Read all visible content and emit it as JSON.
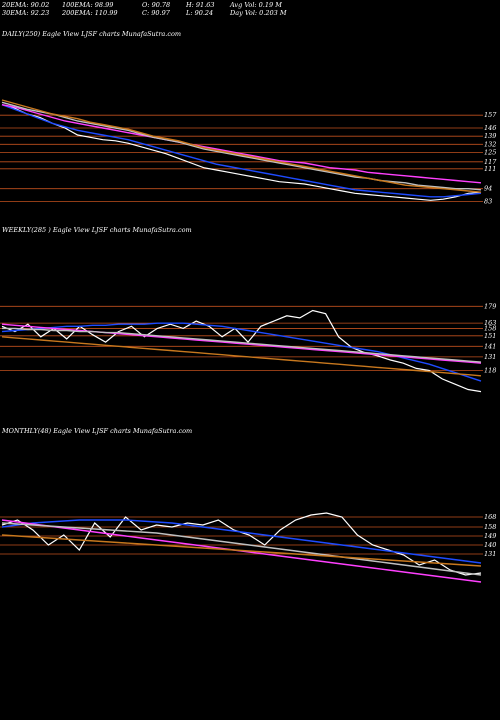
{
  "header": {
    "row1": [
      "20EMA: 90.02",
      "100EMA: 98.99",
      "O: 90.78",
      "H: 91.63",
      "Avg Vol: 0.19 M"
    ],
    "row2": [
      "30EMA: 92.23",
      "200EMA: 110.99",
      "C: 90.97",
      "L: 90.24",
      "Day Vol: 0.203 M"
    ]
  },
  "panels": [
    {
      "title": "DAILY(250) Eagle  View  LJSF charts MunafaSutra.com"
    },
    {
      "title": "WEEKLY(285                   ) Eagle  View  LJSF charts MunafaSutra.com"
    },
    {
      "title": "MONTHLY(48) Eagle  View  LJSF charts MunafaSutra.com"
    }
  ],
  "chart_data": [
    {
      "type": "line",
      "title": "DAILY(250) Eagle  View  LJSF charts MunafaSutra.com",
      "ylim": [
        80,
        170
      ],
      "levels": [
        157,
        146,
        139,
        132,
        125,
        117,
        111,
        94,
        83
      ],
      "series": [
        {
          "color": "#ffffff",
          "values": [
            166,
            163,
            158,
            155,
            150,
            146,
            140,
            138,
            136,
            135,
            133,
            130,
            127,
            124,
            120,
            116,
            112,
            110,
            108,
            106,
            104,
            102,
            100,
            99,
            98,
            96,
            94,
            92,
            90,
            89,
            88,
            87,
            86,
            85,
            84,
            85,
            87,
            90,
            91
          ]
        },
        {
          "color": "#1e4bff",
          "values": [
            166,
            162,
            158,
            154,
            150,
            147,
            144,
            142,
            140,
            138,
            136,
            133,
            130,
            127,
            124,
            121,
            118,
            115,
            113,
            111,
            109,
            107,
            105,
            103,
            101,
            99,
            97,
            95,
            93,
            92,
            91,
            90,
            89,
            88,
            87,
            87,
            88,
            89,
            90
          ]
        },
        {
          "color": "#ff40ff",
          "values": [
            166,
            164,
            161,
            158,
            155,
            152,
            150,
            148,
            146,
            144,
            142,
            140,
            138,
            136,
            134,
            132,
            130,
            128,
            126,
            124,
            122,
            120,
            118,
            117,
            116,
            114,
            112,
            111,
            110,
            108,
            107,
            106,
            105,
            104,
            103,
            102,
            101,
            100,
            99
          ]
        },
        {
          "color": "#c0c0c0",
          "values": [
            168,
            165,
            162,
            160,
            158,
            155,
            152,
            150,
            148,
            146,
            144,
            141,
            138,
            136,
            134,
            131,
            128,
            126,
            124,
            122,
            120,
            118,
            116,
            114,
            112,
            110,
            108,
            106,
            104,
            103,
            101,
            100,
            99,
            97,
            96,
            95,
            94,
            94,
            93
          ]
        },
        {
          "color": "#c8781e",
          "values": [
            170,
            167,
            164,
            161,
            158,
            156,
            154,
            151,
            149,
            147,
            145,
            142,
            139,
            137,
            135,
            132,
            129,
            127,
            125,
            123,
            121,
            119,
            117,
            115,
            113,
            111,
            109,
            107,
            105,
            103,
            101,
            99,
            97,
            96,
            95,
            94,
            93,
            92,
            91
          ]
        }
      ]
    },
    {
      "type": "line",
      "title": "WEEKLY(285                   ) Eagle  View  LJSF charts MunafaSutra.com",
      "ylim": [
        90,
        185
      ],
      "levels": [
        179,
        163,
        158,
        151,
        141,
        131,
        118
      ],
      "series": [
        {
          "color": "#ffffff",
          "values": [
            160,
            155,
            162,
            150,
            158,
            148,
            160,
            152,
            145,
            155,
            160,
            150,
            158,
            162,
            158,
            165,
            160,
            150,
            158,
            145,
            160,
            165,
            170,
            168,
            175,
            172,
            150,
            140,
            135,
            132,
            128,
            125,
            120,
            118,
            110,
            105,
            100,
            98
          ]
        },
        {
          "color": "#1e4bff",
          "values": [
            155,
            156,
            157,
            158,
            159,
            160,
            160,
            161,
            161,
            162,
            162,
            162,
            163,
            163,
            163,
            162,
            161,
            160,
            158,
            156,
            154,
            152,
            150,
            148,
            146,
            144,
            142,
            140,
            138,
            136,
            133,
            130,
            127,
            124,
            120,
            116,
            112,
            108
          ]
        },
        {
          "color": "#ff40ff",
          "values": [
            162,
            161,
            160,
            159,
            158,
            157,
            156,
            155,
            154,
            153,
            152,
            151,
            150,
            149,
            148,
            147,
            146,
            145,
            144,
            143,
            142,
            141,
            140,
            139,
            138,
            137,
            136,
            135,
            134,
            133,
            132,
            131,
            130,
            129,
            128,
            127,
            126,
            125
          ]
        },
        {
          "color": "#c0c0c0",
          "values": [
            158,
            158,
            157,
            157,
            156,
            156,
            155,
            155,
            154,
            154,
            153,
            152,
            151,
            150,
            149,
            148,
            147,
            146,
            145,
            144,
            143,
            142,
            141,
            140,
            139,
            138,
            137,
            136,
            135,
            134,
            133,
            132,
            131,
            130,
            129,
            128,
            127,
            126
          ]
        },
        {
          "color": "#c8781e",
          "values": [
            150,
            149,
            148,
            147,
            146,
            145,
            144,
            143,
            142,
            141,
            140,
            139,
            138,
            137,
            136,
            135,
            134,
            133,
            132,
            131,
            130,
            129,
            128,
            127,
            126,
            125,
            124,
            123,
            122,
            121,
            120,
            119,
            118,
            117,
            116,
            115,
            114,
            113
          ]
        }
      ]
    },
    {
      "type": "line",
      "title": "MONTHLY(48) Eagle  View  LJSF charts MunafaSutra.com",
      "ylim": [
        95,
        190
      ],
      "levels": [
        168,
        158,
        149,
        140,
        131
      ],
      "series": [
        {
          "color": "#ffffff",
          "values": [
            160,
            165,
            155,
            140,
            150,
            135,
            162,
            148,
            168,
            155,
            160,
            158,
            162,
            160,
            165,
            155,
            150,
            140,
            155,
            165,
            170,
            172,
            168,
            150,
            140,
            135,
            130,
            120,
            125,
            115,
            110,
            112
          ]
        },
        {
          "color": "#1e4bff",
          "values": [
            158,
            160,
            162,
            163,
            164,
            165,
            165,
            165,
            165,
            164,
            163,
            162,
            160,
            158,
            156,
            154,
            152,
            150,
            148,
            146,
            144,
            142,
            140,
            138,
            136,
            134,
            132,
            130,
            128,
            126,
            124,
            122
          ]
        },
        {
          "color": "#ff40ff",
          "values": [
            165,
            163,
            161,
            159,
            157,
            155,
            153,
            151,
            149,
            147,
            145,
            143,
            141,
            139,
            137,
            135,
            133,
            131,
            129,
            127,
            125,
            123,
            121,
            119,
            117,
            115,
            113,
            111,
            109,
            107,
            105,
            103
          ]
        },
        {
          "color": "#c0c0c0",
          "values": [
            162,
            161,
            160,
            159,
            158,
            157,
            156,
            155,
            154,
            153,
            152,
            150,
            148,
            146,
            144,
            142,
            140,
            138,
            136,
            134,
            132,
            130,
            128,
            126,
            124,
            122,
            120,
            118,
            116,
            114,
            112,
            110
          ]
        },
        {
          "color": "#c8781e",
          "values": [
            150,
            149,
            148,
            147,
            146,
            145,
            144,
            143,
            142,
            141,
            140,
            139,
            138,
            137,
            136,
            135,
            134,
            133,
            132,
            131,
            130,
            129,
            128,
            127,
            126,
            125,
            124,
            123,
            122,
            121,
            120,
            119
          ]
        }
      ]
    }
  ]
}
